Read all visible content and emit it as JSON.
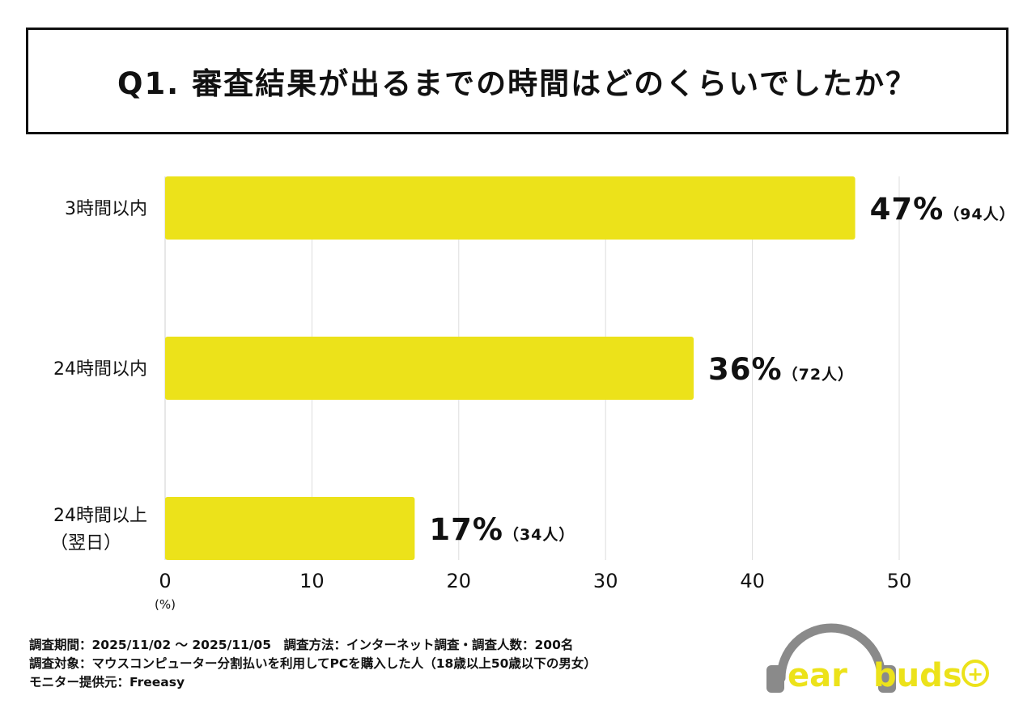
{
  "title": "Q1. 審査結果が出るまでの時間はどのくらいでしたか？",
  "chart_data": {
    "type": "bar",
    "orientation": "horizontal",
    "title": "Q1. 審査結果が出るまでの時間はどのくらいでしたか？",
    "categories": [
      "3時間以内",
      "24時間以内",
      "24時間以上（翌日）"
    ],
    "category_lines": [
      [
        "3時間以内"
      ],
      [
        "24時間以内"
      ],
      [
        "24時間以上",
        "（翌日）"
      ]
    ],
    "values": [
      47,
      36,
      17
    ],
    "value_labels": [
      "47%",
      "36%",
      "17%"
    ],
    "count_labels": [
      "（94人）",
      "（72人）",
      "（34人）"
    ],
    "xlim": [
      0,
      50
    ],
    "xticks": [
      0,
      10,
      20,
      30,
      40,
      50
    ],
    "xtick_labels": [
      "0",
      "10",
      "20",
      "30",
      "40",
      "50"
    ],
    "xunit": "(%)",
    "grid": true,
    "bar_color": "#ece21a"
  },
  "footer": {
    "line1": "調査期間：2025/11/02 〜 2025/11/05　調査方法：インターネット調査・調査人数：200名",
    "line2": "調査対象：マウスコンピューター分割払いを利用してPCを購入した人（18歳以上50歳以下の男女）",
    "line3": "モニター提供元：Freeasy"
  },
  "logo": {
    "text_ear": "ear",
    "text_buds": "buds",
    "plus": "+",
    "colors": {
      "headphone": "#8a8a8a",
      "text": "#ece21a"
    }
  }
}
